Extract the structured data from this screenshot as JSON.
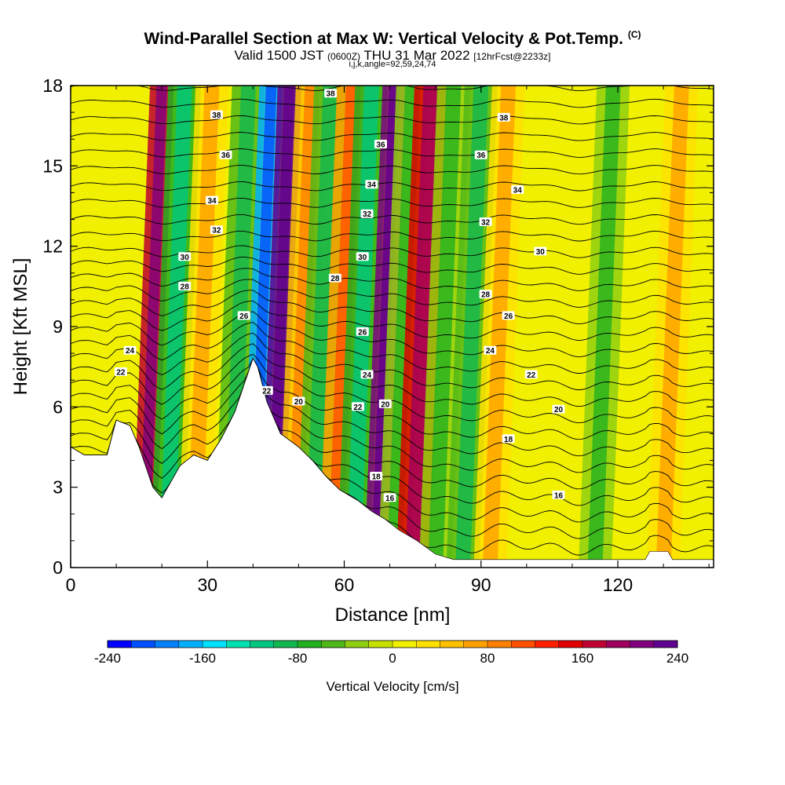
{
  "header": {
    "title": "Wind-Parallel Section at Max W: Vertical Velocity & Pot.Temp.",
    "copyright": "(C)",
    "valid_prefix": "Valid 1500 JST",
    "utc": "(0600Z)",
    "valid_date": "THU 31 Mar 2022",
    "forecast": "[12hrFcst@2233z]",
    "indices": "i,j,k,angle=92,59,24,74"
  },
  "colors": {
    "scale": [
      "#0000ff",
      "#0050ff",
      "#0080ff",
      "#00b0ff",
      "#00e0ff",
      "#00e0b0",
      "#00c880",
      "#10b850",
      "#20b020",
      "#50b818",
      "#90d010",
      "#c8e000",
      "#f0f000",
      "#ffe000",
      "#ffc000",
      "#ffa000",
      "#ff8000",
      "#ff5000",
      "#ff2000",
      "#e00000",
      "#c00030",
      "#a00060",
      "#800080",
      "#600090"
    ]
  },
  "chart_data": {
    "type": "heatmap",
    "xlabel": "Distance [nm]",
    "ylabel": "Height [Kft MSL]",
    "xlim": [
      0,
      141
    ],
    "ylim": [
      0,
      18
    ],
    "xticks": [
      0,
      30,
      60,
      90,
      120
    ],
    "yticks": [
      0,
      3,
      6,
      9,
      12,
      15,
      18
    ],
    "colorbar": {
      "title": "Vertical Velocity [cm/s]",
      "min": -240,
      "max": 240,
      "step": 20,
      "ticks": [
        -240,
        -160,
        -80,
        0,
        80,
        160,
        240
      ]
    },
    "vertical_velocity_bands": [
      {
        "x": 16,
        "value": 160
      },
      {
        "x": 21,
        "value": -80
      },
      {
        "x": 27,
        "value": 20
      },
      {
        "x": 35,
        "value": -60
      },
      {
        "x": 40,
        "value": -180
      },
      {
        "x": 44,
        "value": 220
      },
      {
        "x": 49,
        "value": 40
      },
      {
        "x": 53,
        "value": -60
      },
      {
        "x": 58,
        "value": 60
      },
      {
        "x": 62,
        "value": -80
      },
      {
        "x": 67,
        "value": 200
      },
      {
        "x": 71,
        "value": -40
      },
      {
        "x": 75,
        "value": 140
      },
      {
        "x": 80,
        "value": -40
      },
      {
        "x": 86,
        "value": -60
      },
      {
        "x": 92,
        "value": 20
      },
      {
        "x": 115,
        "value": -40
      },
      {
        "x": 130,
        "value": 20
      }
    ],
    "terrain": [
      {
        "x": 0,
        "y": 4.5
      },
      {
        "x": 3,
        "y": 4.2
      },
      {
        "x": 8,
        "y": 4.2
      },
      {
        "x": 10,
        "y": 5.5
      },
      {
        "x": 13,
        "y": 5.3
      },
      {
        "x": 15,
        "y": 4.5
      },
      {
        "x": 18,
        "y": 3.0
      },
      {
        "x": 20,
        "y": 2.6
      },
      {
        "x": 22,
        "y": 3.2
      },
      {
        "x": 24,
        "y": 3.8
      },
      {
        "x": 27,
        "y": 4.2
      },
      {
        "x": 30,
        "y": 4.0
      },
      {
        "x": 33,
        "y": 4.8
      },
      {
        "x": 36,
        "y": 5.8
      },
      {
        "x": 38,
        "y": 6.8
      },
      {
        "x": 40,
        "y": 7.8
      },
      {
        "x": 41,
        "y": 7.5
      },
      {
        "x": 43,
        "y": 6.2
      },
      {
        "x": 46,
        "y": 5.0
      },
      {
        "x": 50,
        "y": 4.5
      },
      {
        "x": 53,
        "y": 4.0
      },
      {
        "x": 56,
        "y": 3.4
      },
      {
        "x": 59,
        "y": 2.9
      },
      {
        "x": 63,
        "y": 2.5
      },
      {
        "x": 66,
        "y": 2.1
      },
      {
        "x": 69,
        "y": 1.8
      },
      {
        "x": 72,
        "y": 1.4
      },
      {
        "x": 76,
        "y": 1.0
      },
      {
        "x": 80,
        "y": 0.5
      },
      {
        "x": 84,
        "y": 0.3
      },
      {
        "x": 126,
        "y": 0.3
      },
      {
        "x": 127,
        "y": 0.6
      },
      {
        "x": 131,
        "y": 0.6
      },
      {
        "x": 132,
        "y": 0.3
      },
      {
        "x": 141,
        "y": 0.3
      }
    ],
    "isentrope_labels": [
      {
        "x": 32,
        "y": 16.9,
        "text": "38"
      },
      {
        "x": 57,
        "y": 17.7,
        "text": "38"
      },
      {
        "x": 95,
        "y": 16.8,
        "text": "38"
      },
      {
        "x": 34,
        "y": 15.4,
        "text": "36"
      },
      {
        "x": 68,
        "y": 15.8,
        "text": "36"
      },
      {
        "x": 90,
        "y": 15.4,
        "text": "36"
      },
      {
        "x": 31,
        "y": 13.7,
        "text": "34"
      },
      {
        "x": 66,
        "y": 14.3,
        "text": "34"
      },
      {
        "x": 98,
        "y": 14.1,
        "text": "34"
      },
      {
        "x": 32,
        "y": 12.6,
        "text": "32"
      },
      {
        "x": 65,
        "y": 13.2,
        "text": "32"
      },
      {
        "x": 91,
        "y": 12.9,
        "text": "32"
      },
      {
        "x": 25,
        "y": 11.6,
        "text": "30"
      },
      {
        "x": 64,
        "y": 11.6,
        "text": "30"
      },
      {
        "x": 103,
        "y": 11.8,
        "text": "30"
      },
      {
        "x": 25,
        "y": 10.5,
        "text": "28"
      },
      {
        "x": 58,
        "y": 10.8,
        "text": "28"
      },
      {
        "x": 91,
        "y": 10.2,
        "text": "28"
      },
      {
        "x": 38,
        "y": 9.4,
        "text": "26"
      },
      {
        "x": 64,
        "y": 8.8,
        "text": "26"
      },
      {
        "x": 96,
        "y": 9.4,
        "text": "26"
      },
      {
        "x": 13,
        "y": 8.1,
        "text": "24"
      },
      {
        "x": 65,
        "y": 7.2,
        "text": "24"
      },
      {
        "x": 92,
        "y": 8.1,
        "text": "24"
      },
      {
        "x": 11,
        "y": 7.3,
        "text": "22"
      },
      {
        "x": 43,
        "y": 6.6,
        "text": "22"
      },
      {
        "x": 63,
        "y": 6.0,
        "text": "22"
      },
      {
        "x": 101,
        "y": 7.2,
        "text": "22"
      },
      {
        "x": 50,
        "y": 6.2,
        "text": "20"
      },
      {
        "x": 69,
        "y": 6.1,
        "text": "20"
      },
      {
        "x": 107,
        "y": 5.9,
        "text": "20"
      },
      {
        "x": 96,
        "y": 4.8,
        "text": "18"
      },
      {
        "x": 67,
        "y": 3.4,
        "text": "18"
      },
      {
        "x": 70,
        "y": 2.6,
        "text": "16"
      },
      {
        "x": 107,
        "y": 2.7,
        "text": "16"
      }
    ]
  }
}
